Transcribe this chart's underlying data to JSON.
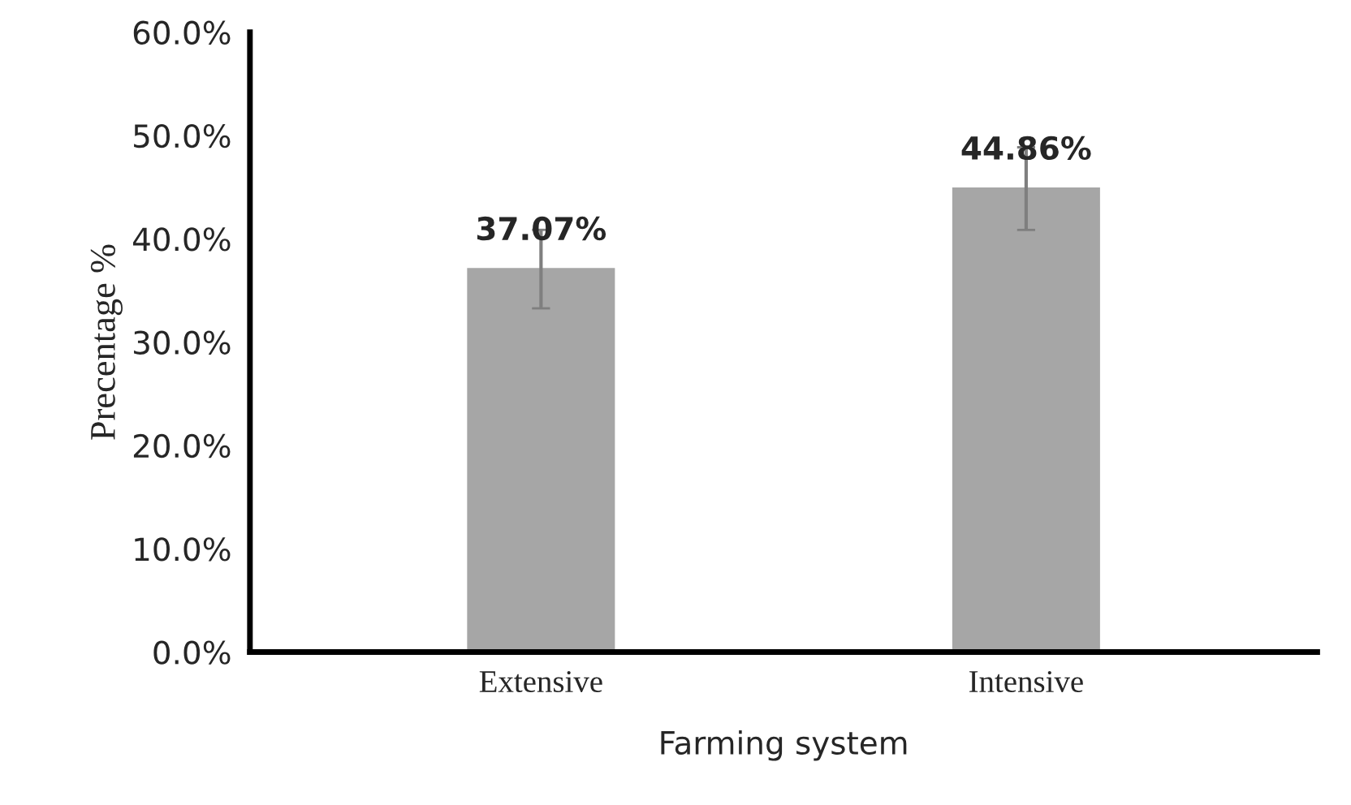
{
  "chart_data": {
    "type": "bar",
    "xlabel": "Farming system",
    "ylabel": "Precentage %",
    "categories": [
      "Extensive",
      "Intensive"
    ],
    "values": [
      37.07,
      44.86
    ],
    "errors": [
      3.8,
      4.0
    ],
    "value_labels": [
      "37.07%",
      "44.86%"
    ],
    "color": "#a6a6a6",
    "ylim": [
      0,
      60
    ],
    "yticks": [
      {
        "value": 0,
        "label": "0.0%"
      },
      {
        "value": 10,
        "label": "10.0%"
      },
      {
        "value": 20,
        "label": "20.0%"
      },
      {
        "value": 30,
        "label": "30.0%"
      },
      {
        "value": 40,
        "label": "40.0%"
      },
      {
        "value": 50,
        "label": "50.0%"
      },
      {
        "value": 60,
        "label": "60.0%"
      }
    ],
    "grid": false,
    "legend": false
  }
}
